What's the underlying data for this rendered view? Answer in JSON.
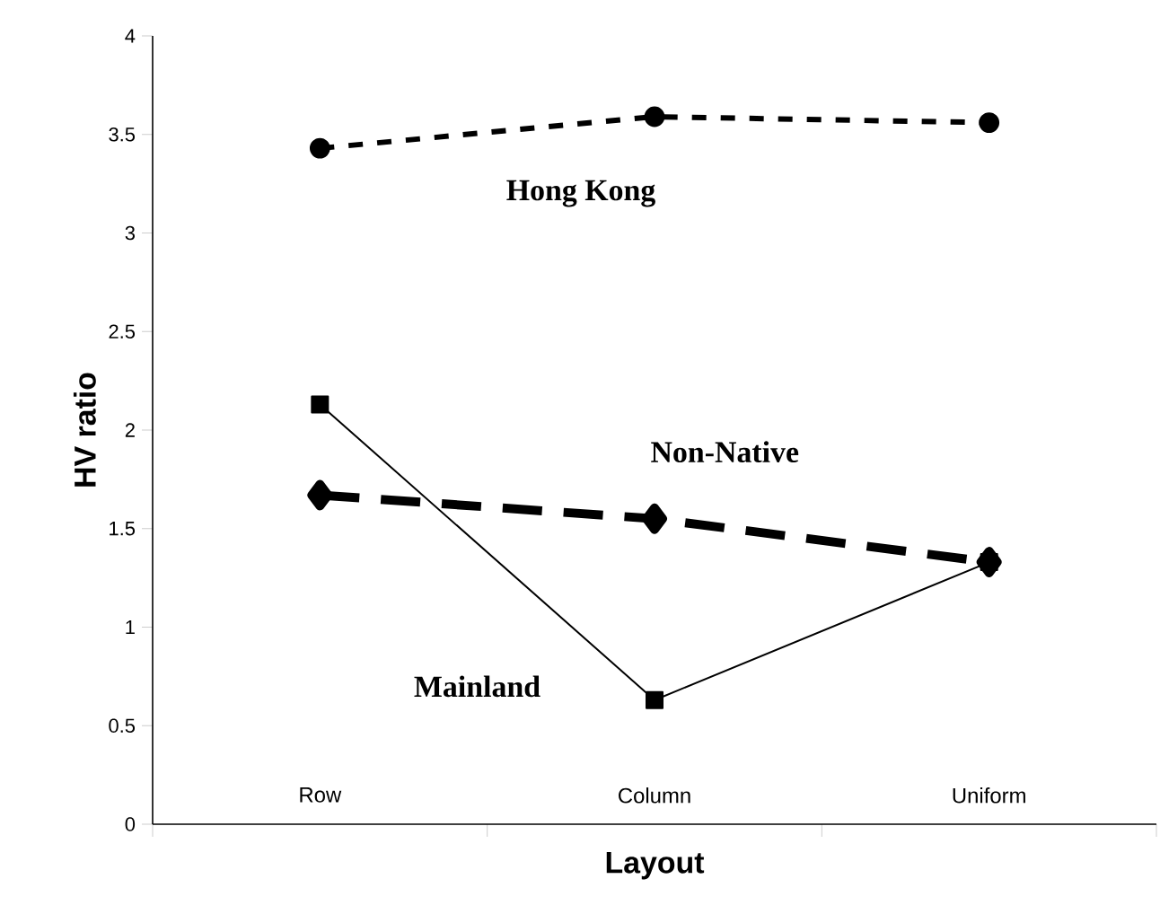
{
  "chart_data": {
    "type": "line",
    "xlabel": "Layout",
    "ylabel": "HV ratio",
    "categories": [
      "Row",
      "Column",
      "Uniform"
    ],
    "series": [
      {
        "name": "Hong Kong",
        "color": "#000000",
        "values": [
          3.43,
          3.59,
          3.56
        ],
        "marker": "circle",
        "line_style": "dotted"
      },
      {
        "name": "Non-Native",
        "color": "#000000",
        "values": [
          1.67,
          1.55,
          1.33
        ],
        "marker": "diamond",
        "line_style": "dashed"
      },
      {
        "name": "Mainland",
        "color": "#000000",
        "values": [
          2.13,
          0.63,
          1.33
        ],
        "marker": "square",
        "line_style": "solid"
      }
    ],
    "ylim": [
      0,
      4
    ],
    "yticks": [
      0,
      0.5,
      1,
      1.5,
      2,
      2.5,
      3,
      3.5,
      4
    ],
    "grid": false
  }
}
